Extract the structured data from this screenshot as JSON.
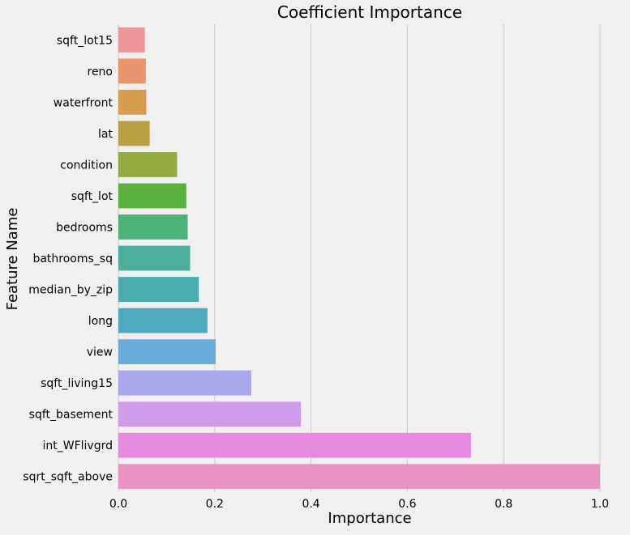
{
  "chart_data": {
    "type": "bar",
    "orientation": "horizontal",
    "title": "Coefficient Importance",
    "xlabel": "Importance",
    "ylabel": "Feature Name",
    "xlim": [
      0,
      1.0
    ],
    "xticks": [
      "0.0",
      "0.2",
      "0.4",
      "0.6",
      "0.8",
      "1.0"
    ],
    "grid": "vertical",
    "categories": [
      "sqft_lot15",
      "reno",
      "waterfront",
      "lat",
      "condition",
      "sqft_lot",
      "bedrooms",
      "bathrooms_sq",
      "median_by_zip",
      "long",
      "view",
      "sqft_living15",
      "sqft_basement",
      "int_WFlivgrd",
      "sqrt_sqft_above"
    ],
    "values": [
      0.055,
      0.057,
      0.058,
      0.065,
      0.122,
      0.141,
      0.144,
      0.149,
      0.167,
      0.185,
      0.202,
      0.276,
      0.379,
      0.732,
      1.0
    ],
    "colors": [
      "#ee959c",
      "#e8946c",
      "#d79c4e",
      "#b8a243",
      "#93aa3f",
      "#59b23e",
      "#4cb37b",
      "#4caf9b",
      "#4bacac",
      "#4daabf",
      "#69acdc",
      "#aaa6ec",
      "#cf9aea",
      "#e68ade",
      "#eb92c2"
    ]
  }
}
